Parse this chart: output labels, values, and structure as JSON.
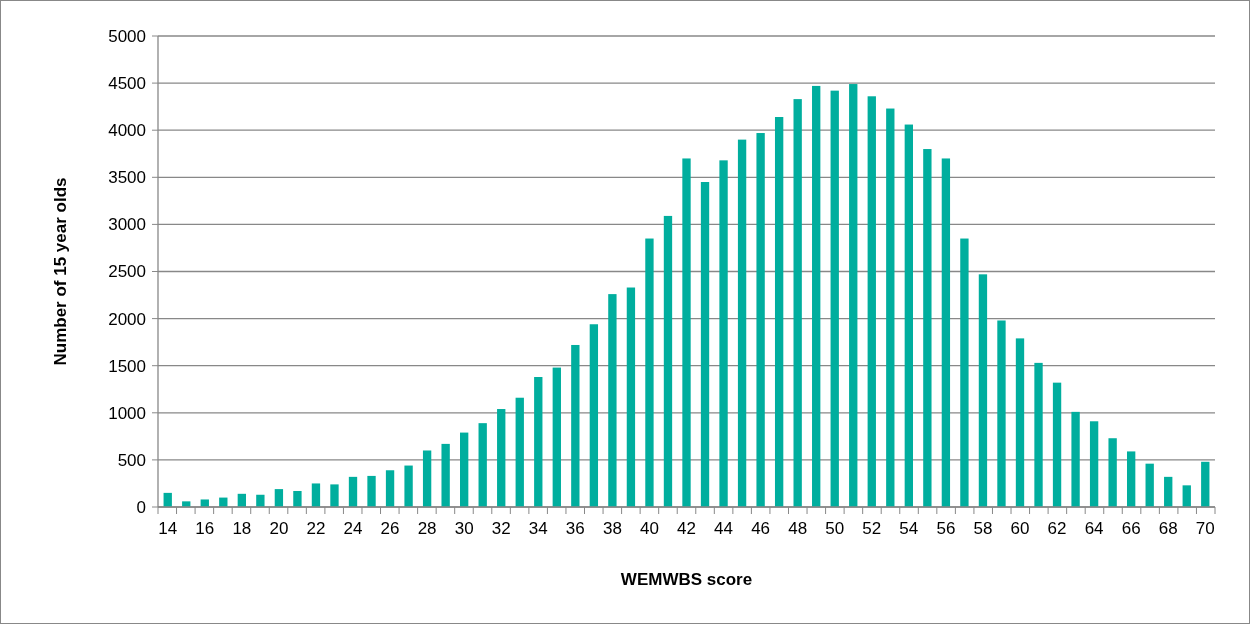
{
  "chart_data": {
    "type": "bar",
    "xlabel": "WEMWBS score",
    "ylabel": "Number of 15 year olds",
    "categories": [
      "14",
      null,
      "16",
      null,
      "18",
      null,
      "20",
      null,
      "22",
      null,
      "24",
      null,
      "26",
      null,
      "28",
      null,
      "30",
      null,
      "32",
      null,
      "34",
      null,
      "36",
      null,
      "38",
      null,
      "40",
      null,
      "42",
      null,
      "44",
      null,
      "46",
      null,
      "48",
      null,
      "50",
      null,
      "52",
      null,
      "54",
      null,
      "56",
      null,
      "58",
      null,
      "60",
      null,
      "62",
      null,
      "64",
      null,
      "66",
      null,
      "68",
      null,
      "70"
    ],
    "series": [
      {
        "color": "#00ae9e",
        "values": [
          150,
          60,
          80,
          100,
          140,
          130,
          190,
          170,
          250,
          240,
          320,
          330,
          390,
          440,
          600,
          670,
          790,
          890,
          1040,
          1160,
          1380,
          1480,
          1720,
          1940,
          2260,
          2330,
          2850,
          3090,
          3700,
          3450,
          3680,
          3900,
          3970,
          4140,
          4330,
          4470,
          4420,
          4490,
          4360,
          4230,
          4060,
          3800,
          3700,
          2850,
          2470,
          1980,
          1790,
          1530,
          1320,
          1010,
          910,
          730,
          590,
          460,
          320,
          230,
          480
        ]
      }
    ],
    "ylim": [
      0,
      5000
    ],
    "yticks": [
      0,
      500,
      1000,
      1500,
      2000,
      2500,
      3000,
      3500,
      4000,
      4500,
      5000
    ],
    "grid": "y"
  }
}
